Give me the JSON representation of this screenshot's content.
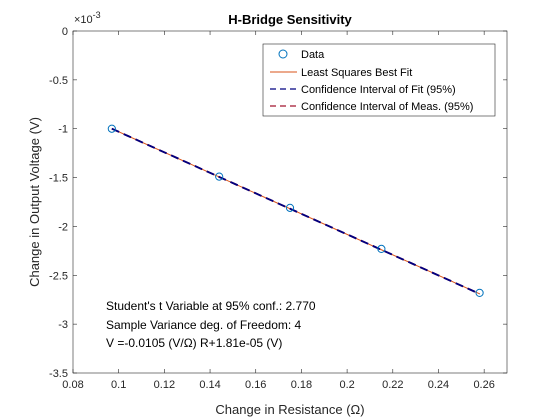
{
  "chart_data": {
    "type": "scatter",
    "title": "H-Bridge Sensitivity",
    "xlabel": "Change in Resistance (Ω)",
    "ylabel": "Change in Output Voltage (V)",
    "exponent_label": "×10",
    "exponent_power": "-3",
    "xlim": [
      0.08,
      0.27
    ],
    "ylim": [
      -3.5,
      0
    ],
    "xticks": [
      "0.08",
      "0.1",
      "0.12",
      "0.14",
      "0.16",
      "0.18",
      "0.2",
      "0.22",
      "0.24",
      "0.26"
    ],
    "xtick_values": [
      0.08,
      0.1,
      0.12,
      0.14,
      0.16,
      0.18,
      0.2,
      0.22,
      0.24,
      0.26
    ],
    "yticks": [
      "0",
      "-0.5",
      "-1",
      "-1.5",
      "-2",
      "-2.5",
      "-3",
      "-3.5"
    ],
    "ytick_values": [
      0,
      -0.5,
      -1,
      -1.5,
      -2,
      -2.5,
      -3,
      -3.5
    ],
    "series": [
      {
        "name": "Data",
        "kind": "markers",
        "color": "#0072bd",
        "x": [
          0.097,
          0.144,
          0.175,
          0.215,
          0.258
        ],
        "y": [
          -1.0,
          -1.49,
          -1.81,
          -2.23,
          -2.68
        ]
      },
      {
        "name": "Least Squares Best Fit",
        "kind": "line",
        "color": "#d95319",
        "x": [
          0.097,
          0.258
        ],
        "y": [
          -1.0,
          -2.69
        ]
      },
      {
        "name": "Confidence Interval of Fit (95%)",
        "kind": "dashed",
        "color": "#000080",
        "x": [
          0.097,
          0.258
        ],
        "y": [
          -1.0,
          -2.69
        ]
      },
      {
        "name": "Confidence Interval of Meas. (95%)",
        "kind": "dashed",
        "color": "#a2142f",
        "x": [
          0.097,
          0.258
        ],
        "y": [
          -1.0,
          -2.69
        ]
      }
    ],
    "annotations": [
      "Student's t Variable at 95% conf.: 2.770",
      "Sample Variance deg. of Freedom: 4",
      "V =-0.0105 (V/Ω) R+1.81e-05 (V)"
    ],
    "legend_position": "top-right",
    "grid": false
  }
}
